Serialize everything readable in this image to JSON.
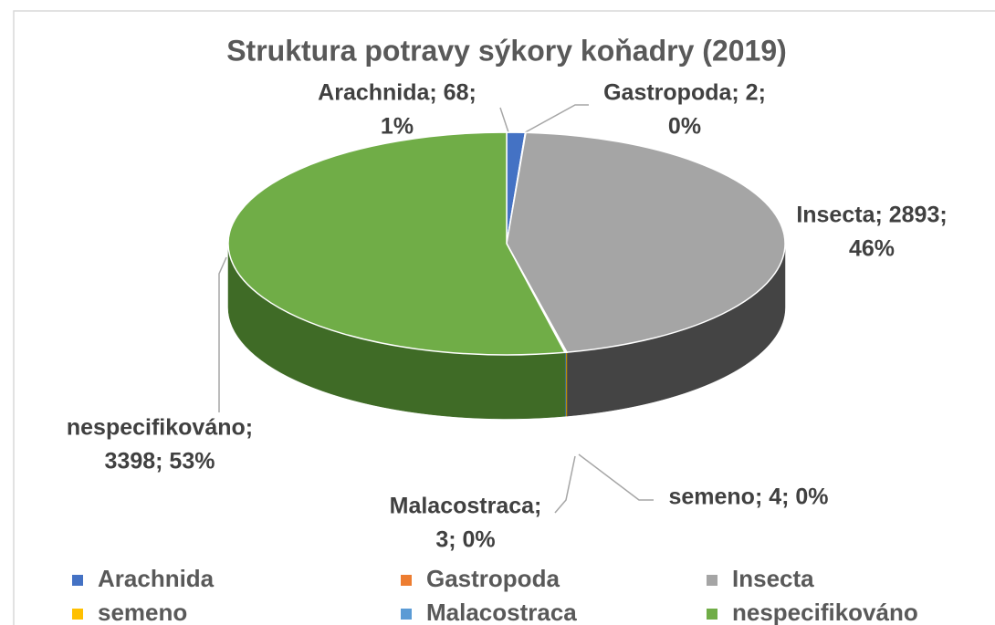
{
  "chart_data": {
    "type": "pie",
    "title": "Struktura potravy sýkory koňadry (2019)",
    "categories": [
      "Arachnida",
      "Gastropoda",
      "Insecta",
      "semeno",
      "Malacostraca",
      "nespecifikováno"
    ],
    "values": [
      68,
      2,
      2893,
      4,
      3,
      3398
    ],
    "value_labels": [
      [
        "Arachnida; 68;",
        "1%"
      ],
      [
        "Gastropoda; 2;",
        "0%"
      ],
      [
        "Insecta; 2893;",
        "46%"
      ],
      [
        "semeno; 4; 0%"
      ],
      [
        "Malacostraca;",
        "3; 0%"
      ],
      [
        "nespecifikováno;",
        "3398; 53%"
      ]
    ],
    "colors": [
      "#4472c4",
      "#ed7d31",
      "#a5a5a5",
      "#ffc000",
      "#5b9bd5",
      "#70ad47"
    ],
    "side_colors": [
      "#2f5597",
      "#b85f22",
      "#444444",
      "#bf9000",
      "#41719c",
      "#3f6b26"
    ],
    "legend": "bottom"
  }
}
